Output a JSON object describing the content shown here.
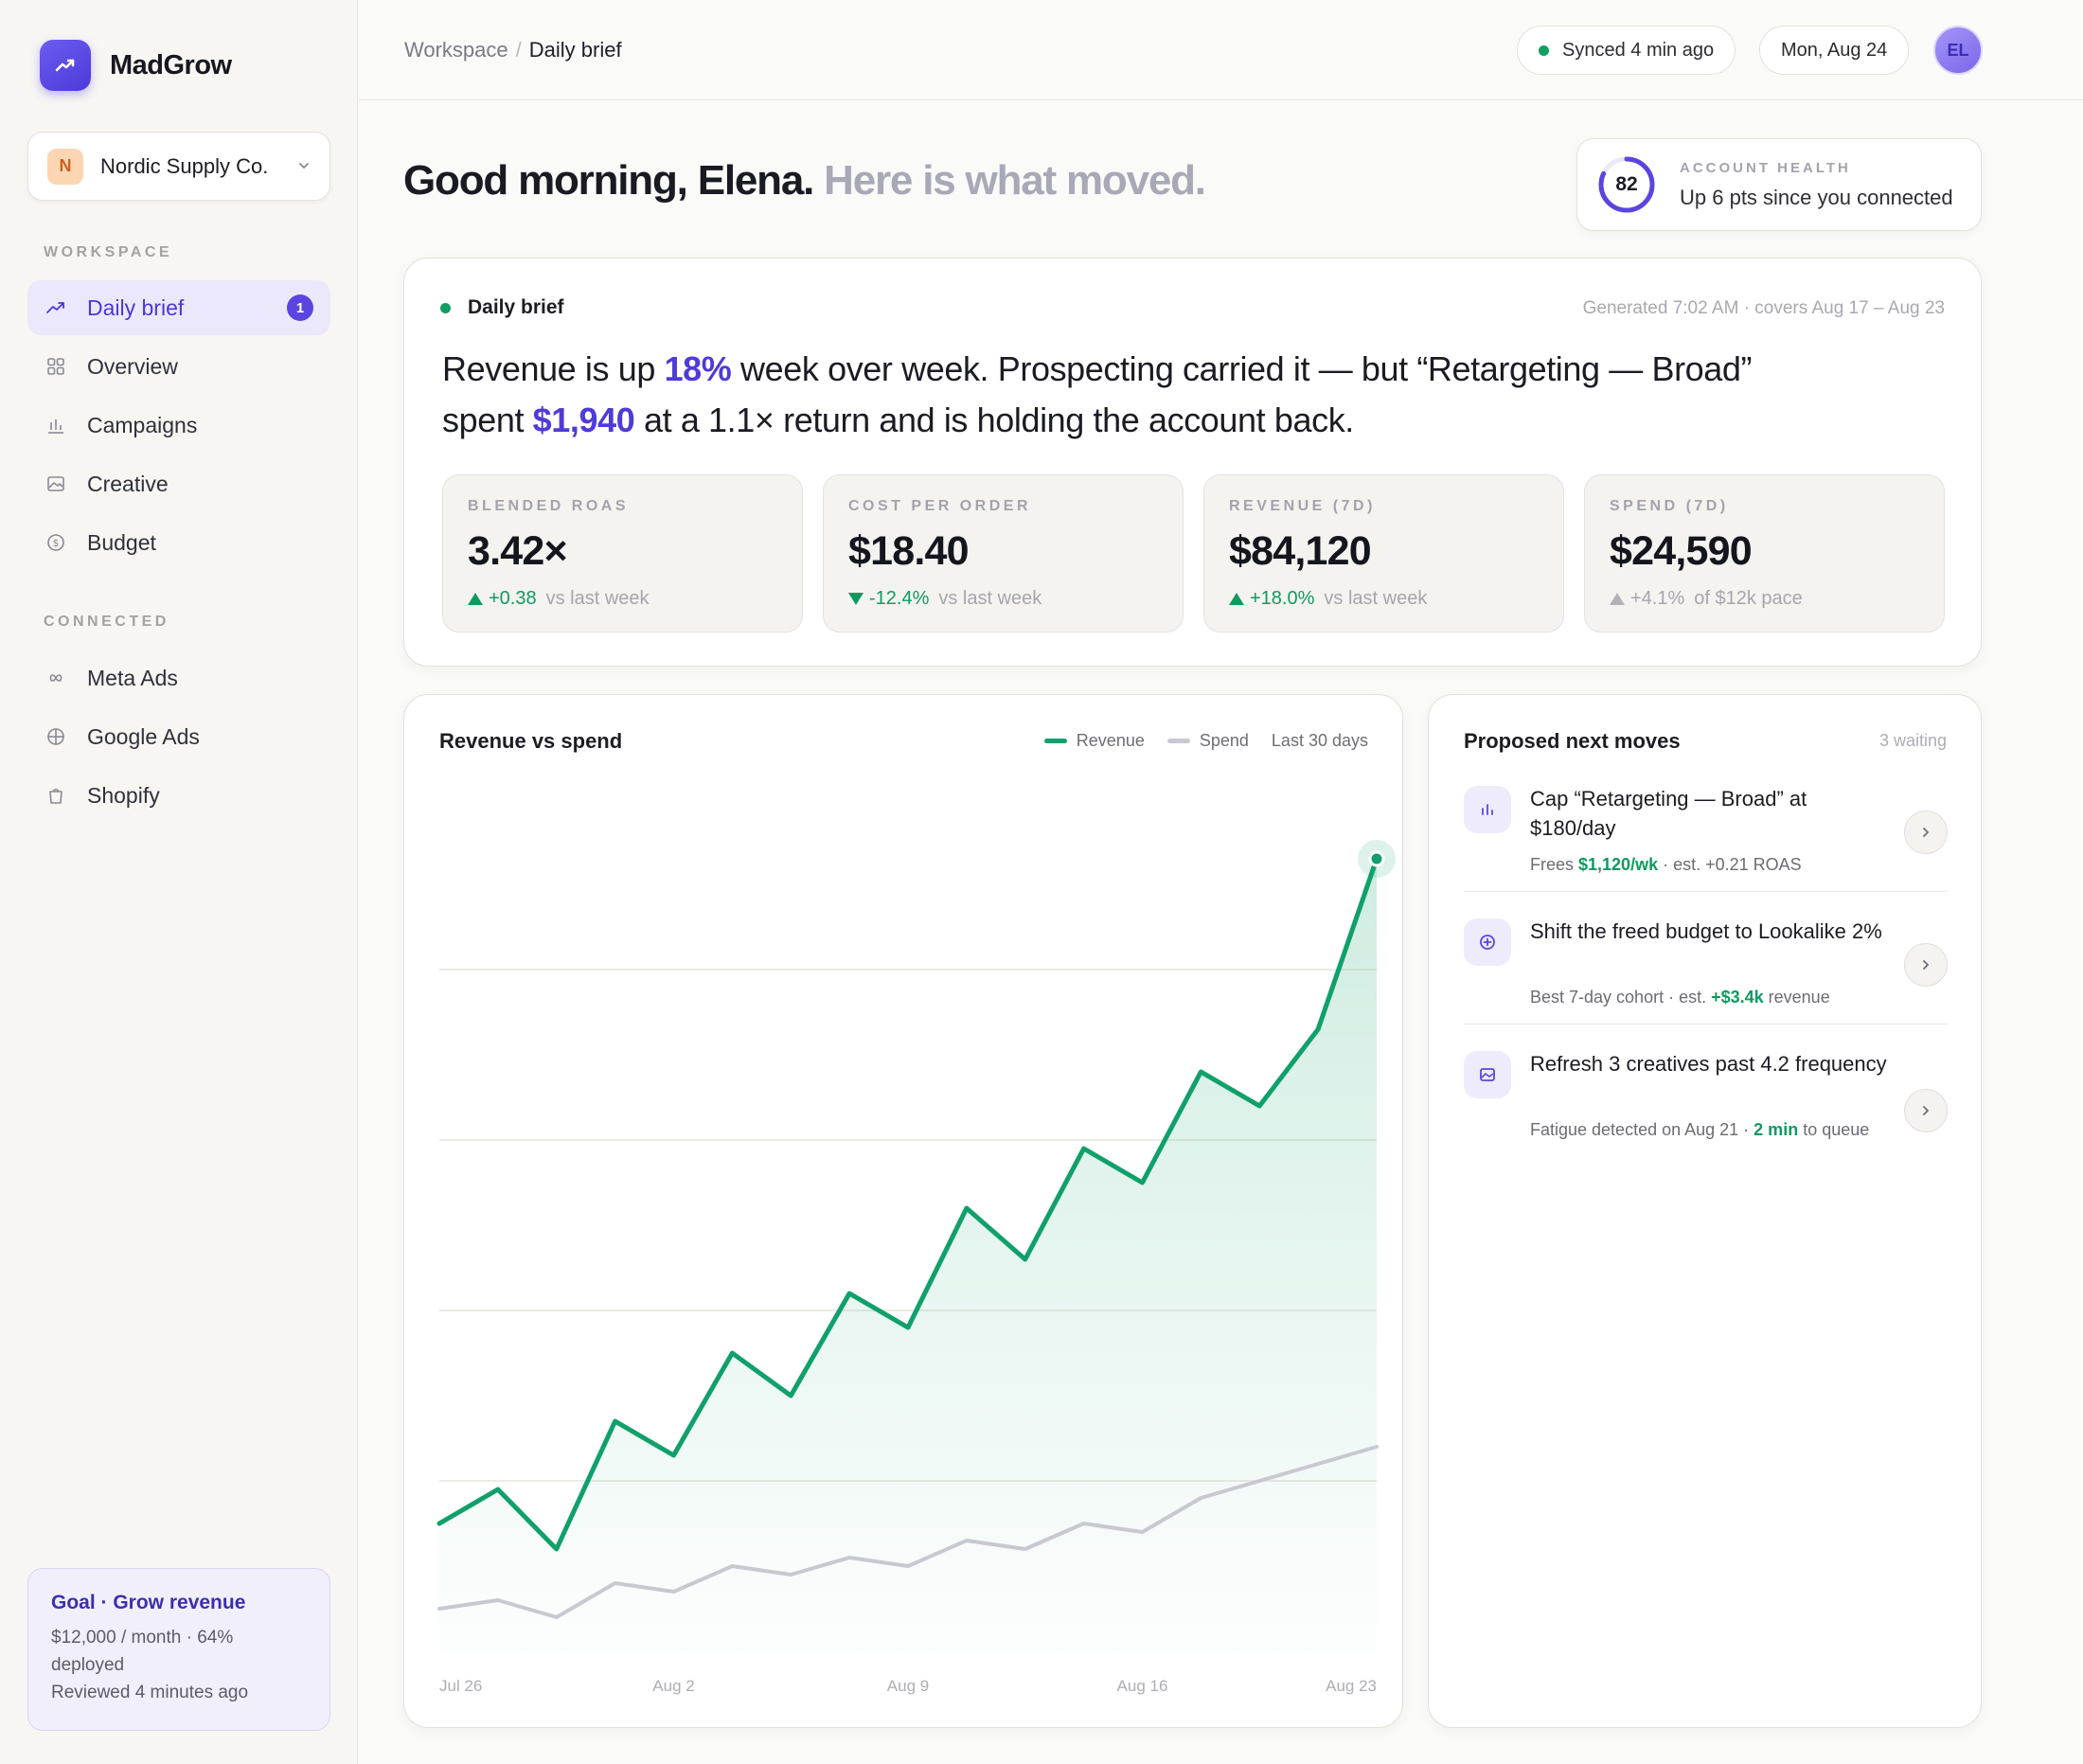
{
  "app": {
    "name": "MadGrow",
    "account": {
      "initial": "N",
      "name": "Nordic Supply Co."
    }
  },
  "sidebar": {
    "workspace_label": "WORKSPACE",
    "workspace_items": [
      {
        "label": "Daily brief",
        "icon": "trend-up-icon",
        "badge": "1",
        "active": true
      },
      {
        "label": "Overview",
        "icon": "grid-icon"
      },
      {
        "label": "Campaigns",
        "icon": "bar-chart-icon"
      },
      {
        "label": "Creative",
        "icon": "image-icon"
      },
      {
        "label": "Budget",
        "icon": "dollar-coin-icon"
      }
    ],
    "connected_label": "CONNECTED",
    "connected_items": [
      {
        "label": "Meta Ads",
        "icon": "infinity-icon"
      },
      {
        "label": "Google Ads",
        "icon": "globe-icon"
      },
      {
        "label": "Shopify",
        "icon": "shopping-bag-icon"
      }
    ],
    "goal": {
      "title": "Goal · Grow revenue",
      "line1": "$12,000 / month · 64%",
      "line2": "deployed",
      "line3": "Reviewed 4 minutes ago"
    }
  },
  "header": {
    "breadcrumb_root": "Workspace",
    "breadcrumb_sep": "/",
    "breadcrumb_current": "Daily brief",
    "sync_status": "Synced 4 min ago",
    "date": "Mon, Aug 24",
    "avatar_initials": "EL"
  },
  "greeting": {
    "main": "Good morning, Elena.",
    "muted": "Here is what moved."
  },
  "health": {
    "score": "82",
    "score_fraction": 0.82,
    "label": "ACCOUNT HEALTH",
    "value": "Up 6 pts since you connected"
  },
  "brief": {
    "title": "Daily brief",
    "meta": "Generated 7:02 AM · covers Aug 17 – Aug 23",
    "text_1": "Revenue is up ",
    "hl_1": "18%",
    "text_2": " week over week. Prospecting carried it — but “Retargeting — Broad”",
    "text_3": "spent ",
    "hl_2": "$1,940",
    "text_4": " at a 1.1× return and is holding the account back.",
    "kpis": [
      {
        "label": "BLENDED ROAS",
        "value": "3.42×",
        "change": "+0.38",
        "suffix": "vs last week",
        "dir": "up"
      },
      {
        "label": "COST PER ORDER",
        "value": "$18.40",
        "change": "-12.4%",
        "suffix": "vs last week",
        "dir": "down"
      },
      {
        "label": "REVENUE (7D)",
        "value": "$84,120",
        "change": "+18.0%",
        "suffix": "vs last week",
        "dir": "up"
      },
      {
        "label": "SPEND (7D)",
        "value": "$24,590",
        "change": "+4.1%",
        "suffix": "of $12k pace",
        "dir": "flat"
      }
    ]
  },
  "chart": {
    "title": "Revenue vs spend",
    "range_label": "Last 30 days"
  },
  "chart_data": {
    "type": "area",
    "title": "Revenue vs spend",
    "x_tick_labels": [
      "Jul 26",
      "Aug 2",
      "Aug 9",
      "Aug 16",
      "Aug 23"
    ],
    "y_range": [
      0,
      100
    ],
    "grid": true,
    "legend": "top-right",
    "series": [
      {
        "name": "Revenue",
        "color": "#10a06a",
        "values": [
          15,
          19,
          12,
          27,
          23,
          35,
          30,
          42,
          38,
          52,
          46,
          59,
          55,
          68,
          64,
          73,
          93
        ]
      },
      {
        "name": "Spend",
        "color": "#c8c8d2",
        "values": [
          5,
          6,
          4,
          8,
          7,
          10,
          9,
          11,
          10,
          13,
          12,
          15,
          14,
          18,
          20,
          22,
          24
        ]
      }
    ]
  },
  "moves": {
    "title": "Proposed next moves",
    "count": "3 waiting",
    "items": [
      {
        "icon": "bar-chart-icon",
        "title": "Cap “Retargeting — Broad” at $180/day",
        "sub_pre": "Frees ",
        "sub_hl": "$1,120/wk",
        "sub_post": " · est. +0.21 ROAS"
      },
      {
        "icon": "target-icon",
        "title": "Shift the freed budget to Lookalike 2%",
        "sub_pre": "Best 7-day cohort · est. ",
        "sub_hl": "+$3.4k",
        "sub_post": " revenue"
      },
      {
        "icon": "image-icon",
        "title": "Refresh 3 creatives past 4.2 frequency",
        "sub_pre": "Fatigue detected on Aug 21 · ",
        "sub_hl": "2 min",
        "sub_post": " to queue"
      }
    ]
  },
  "colors": {
    "accent": "#5b45e0",
    "positive": "#0f9a5f",
    "revenue_line": "#10a06a",
    "spend_line": "#c8c8d2"
  }
}
